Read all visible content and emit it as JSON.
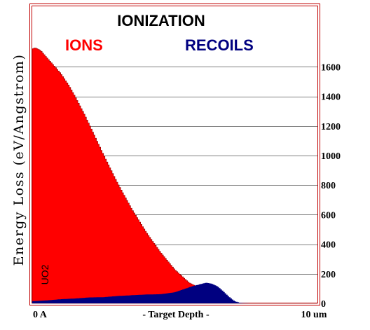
{
  "chart_data": {
    "type": "area",
    "title": "IONIZATION",
    "ylabel": "Energy Loss (eV/Angstrom)",
    "xlabel": "- Target Depth -",
    "x_range_labels": [
      "0 A",
      "10 um"
    ],
    "xlim": [
      0,
      10
    ],
    "x_unit": "um",
    "ylim": [
      0,
      1800
    ],
    "yticks": [
      0,
      200,
      400,
      600,
      800,
      1000,
      1200,
      1400,
      1600
    ],
    "grid": true,
    "target_label": "UO2",
    "colors": {
      "frame": "#c00000",
      "ions": "#ff0000",
      "recoils": "#000080",
      "grid": "#808080",
      "ions_edge": "#900000"
    },
    "series": [
      {
        "name": "IONS",
        "x": [
          0,
          0.1,
          0.3,
          0.5,
          0.8,
          1.0,
          1.3,
          1.5,
          1.8,
          2.0,
          2.5,
          3.0,
          3.5,
          4.0,
          4.5,
          5.0,
          5.5,
          6.0,
          6.3,
          6.5,
          6.7,
          6.9,
          7.1,
          7.3,
          7.6,
          8.0,
          10.0
        ],
        "values": [
          1720,
          1730,
          1710,
          1665,
          1600,
          1555,
          1470,
          1400,
          1290,
          1210,
          1005,
          810,
          635,
          480,
          345,
          228,
          140,
          92,
          72,
          55,
          34,
          15,
          5,
          1,
          0,
          0,
          0
        ]
      },
      {
        "name": "RECOILS",
        "x": [
          0,
          0.5,
          1.0,
          1.5,
          2.0,
          2.5,
          3.0,
          3.5,
          4.0,
          4.5,
          5.0,
          5.3,
          5.6,
          5.9,
          6.1,
          6.3,
          6.5,
          6.7,
          6.9,
          7.1,
          7.3,
          7.6,
          8.0,
          10.0
        ],
        "values": [
          15,
          20,
          28,
          33,
          40,
          42,
          50,
          55,
          60,
          62,
          75,
          95,
          115,
          130,
          140,
          133,
          115,
          82,
          45,
          15,
          3,
          0,
          0,
          0
        ]
      }
    ]
  }
}
